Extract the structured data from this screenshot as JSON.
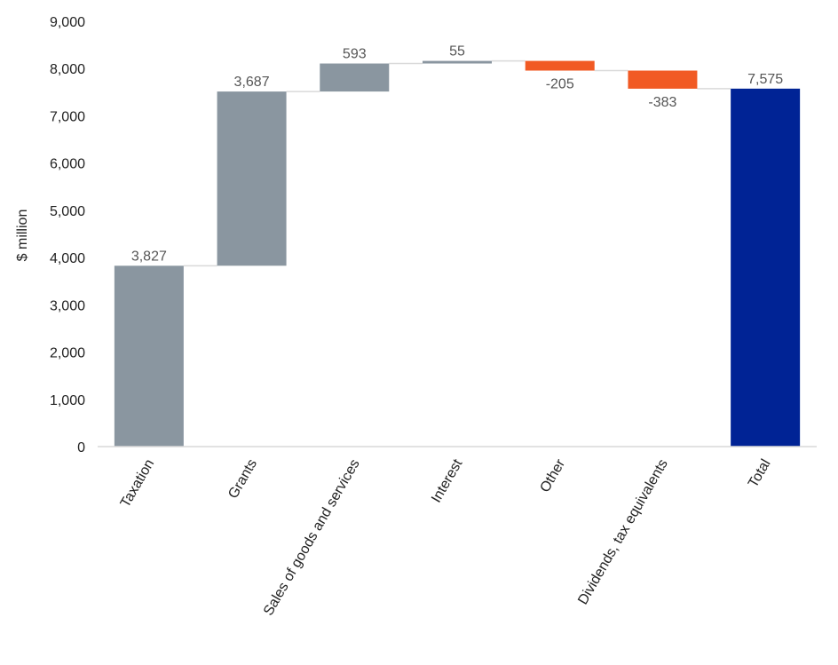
{
  "chart_data": {
    "type": "bar",
    "subtype": "waterfall",
    "title": "",
    "xlabel": "",
    "ylabel": "$ million",
    "ylim": [
      0,
      9000
    ],
    "y_ticks": [
      0,
      1000,
      2000,
      3000,
      4000,
      5000,
      6000,
      7000,
      8000,
      9000
    ],
    "y_tick_labels": [
      "0",
      "1,000",
      "2,000",
      "3,000",
      "4,000",
      "5,000",
      "6,000",
      "7,000",
      "8,000",
      "9,000"
    ],
    "grid": false,
    "legend": "none",
    "categories": [
      "Taxation",
      "Grants",
      "Sales of goods and services",
      "Interest",
      "Other",
      "Dividends, tax equivalents",
      "Total"
    ],
    "values": [
      3827,
      3687,
      593,
      55,
      -205,
      -383,
      7575
    ],
    "value_labels": [
      "3,827",
      "3,687",
      "593",
      "55",
      "-205",
      "-383",
      "7,575"
    ],
    "is_total": [
      false,
      false,
      false,
      false,
      false,
      false,
      true
    ],
    "colors": {
      "increase": "#8a96a0",
      "decrease": "#f15a24",
      "total": "#002395",
      "connector": "#d9d9d9",
      "axis": "#d9d9d9"
    }
  }
}
